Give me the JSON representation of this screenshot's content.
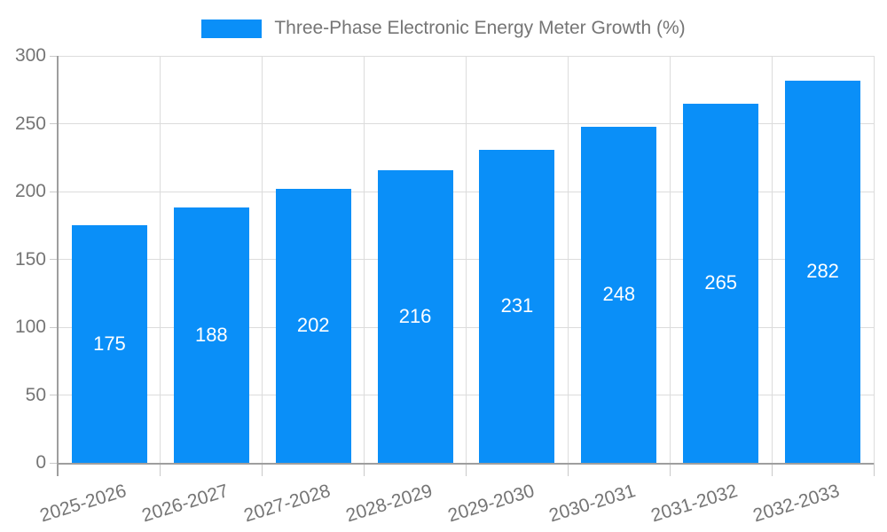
{
  "chart_data": {
    "type": "bar",
    "title": "Three-Phase Electronic Energy Meter Growth (%)",
    "categories": [
      "2025-2026",
      "2026-2027",
      "2027-2028",
      "2028-2029",
      "2029-2030",
      "2030-2031",
      "2031-2032",
      "2032-2033"
    ],
    "values": [
      175,
      188,
      202,
      216,
      231,
      248,
      265,
      282
    ],
    "xlabel": "",
    "ylabel": "",
    "ylim": [
      0,
      300
    ],
    "yticks": [
      0,
      50,
      100,
      150,
      200,
      250,
      300
    ],
    "grid": true,
    "legend_position": "top-center",
    "bar_color": "#0a8ff8",
    "value_label_color": "#ffffff",
    "axis_text_color": "#757575",
    "grid_color": "#dcdcdc",
    "tick_color": "#c9c9c9",
    "axis_line_color": "#9e9e9e",
    "x_label_rotation_deg": -17
  }
}
